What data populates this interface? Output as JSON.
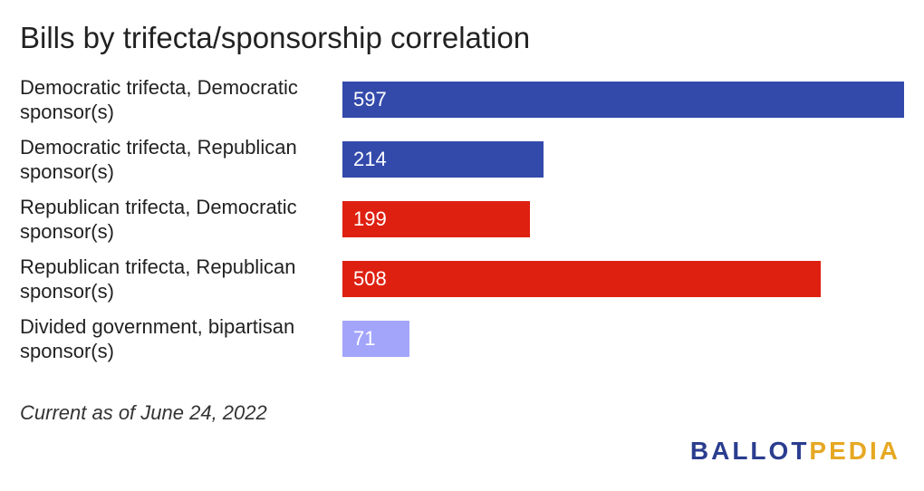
{
  "chart_data": {
    "type": "bar",
    "orientation": "horizontal",
    "title": "Bills by trifecta/sponsorship correlation",
    "categories": [
      "Democratic trifecta, Democratic sponsor(s)",
      "Democratic trifecta, Republican sponsor(s)",
      "Republican trifecta, Democratic sponsor(s)",
      "Republican trifecta, Republican sponsor(s)",
      "Divided government, bipartisan sponsor(s)"
    ],
    "values": [
      597,
      214,
      199,
      508,
      71
    ],
    "colors": [
      "#334aab",
      "#334aab",
      "#de2010",
      "#de2010",
      "#a3a5fb"
    ],
    "data_labels": [
      "597",
      "214",
      "199",
      "508",
      "71"
    ],
    "xlim": [
      0,
      597
    ],
    "grid": false,
    "legend": "none",
    "xlabel": "",
    "ylabel": ""
  },
  "footnote": "Current as of June 24, 2022",
  "logo": {
    "part1": "BALLOT",
    "part2": "PEDIA",
    "colors": {
      "ballot": "#2b3d8f",
      "pedia": "#e6a823"
    }
  }
}
